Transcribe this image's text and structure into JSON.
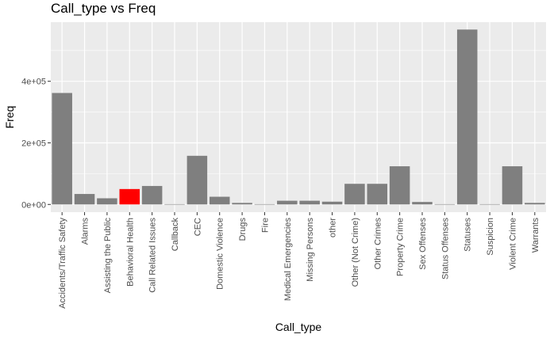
{
  "chart_data": {
    "type": "bar",
    "title": "Call_type vs Freq",
    "xlabel": "Call_type",
    "ylabel": "Freq",
    "ylim": [
      -25000,
      592000
    ],
    "yticks": [
      0,
      200000,
      400000
    ],
    "ytick_labels": [
      "0e+00",
      "2e+05",
      "4e+05"
    ],
    "grid": true,
    "categories": [
      "Accidents/Traffic Safety",
      "Alarms",
      "Assisting the Public",
      "Behavioral Health",
      "Call Related Issues",
      "Callback",
      "CEC",
      "Domestic Violence",
      "Drugs",
      "Fire",
      "Medical Emergencies",
      "Missing Persons",
      "other",
      "Other (Not Crime)",
      "Other Crimes",
      "Property Crime",
      "Sex Offenses",
      "Status Offenses",
      "Statuses",
      "Suspicion",
      "Violent Crime",
      "Warrants"
    ],
    "values": [
      362000,
      34000,
      20000,
      50000,
      60000,
      1000,
      158000,
      25000,
      5000,
      1000,
      12000,
      12000,
      9000,
      67000,
      67000,
      124000,
      8000,
      1000,
      568000,
      1000,
      124000,
      5000
    ],
    "bar_color": "#7f7f7f",
    "highlight_color": "#ff0000",
    "highlight_category": "Behavioral Health",
    "panel_background": "#ebebeb",
    "grid_color": "#ffffff"
  }
}
